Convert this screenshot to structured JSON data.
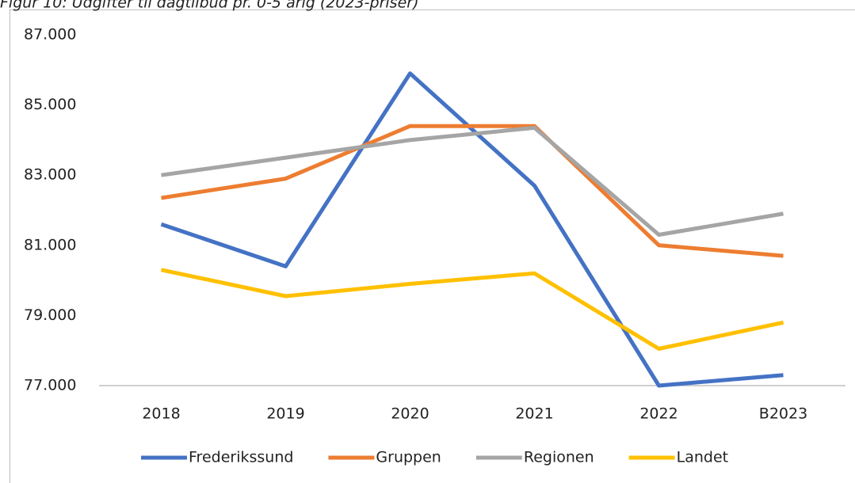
{
  "chart_data": {
    "type": "line",
    "title": "Figur 10: Udgifter til dagtilbud pr. 0-5 årig (2023-priser)",
    "categories": [
      "2018",
      "2019",
      "2020",
      "2021",
      "2022",
      "B2023"
    ],
    "series": [
      {
        "name": "Frederikssund",
        "color": "#4472c4",
        "values": [
          81600,
          80400,
          85900,
          82700,
          77000,
          77300
        ]
      },
      {
        "name": "Gruppen",
        "color": "#ed7d31",
        "values": [
          82350,
          82900,
          84400,
          84400,
          81000,
          80700
        ]
      },
      {
        "name": "Regionen",
        "color": "#a5a5a5",
        "values": [
          83000,
          83500,
          84000,
          84350,
          81300,
          81900
        ]
      },
      {
        "name": "Landet",
        "color": "#ffc000",
        "values": [
          80300,
          79550,
          79900,
          80200,
          78050,
          78800
        ]
      }
    ],
    "ylim": [
      77000,
      87000
    ],
    "yticks": [
      {
        "value": 77000,
        "label": "77.000"
      },
      {
        "value": 79000,
        "label": "79.000"
      },
      {
        "value": 81000,
        "label": "81.000"
      },
      {
        "value": 83000,
        "label": "83.000"
      },
      {
        "value": 85000,
        "label": "85.000"
      },
      {
        "value": 87000,
        "label": "87.000"
      }
    ],
    "legend": "bottom"
  }
}
